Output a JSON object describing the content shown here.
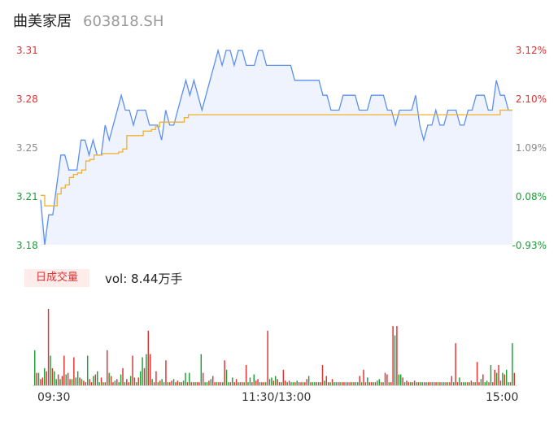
{
  "header": {
    "name": "曲美家居",
    "code": "603818.SH"
  },
  "price_axis": {
    "left_ticks": [
      {
        "label": "3.31",
        "color": "red"
      },
      {
        "label": "3.28",
        "color": "red"
      },
      {
        "label": "3.25",
        "color": "gray"
      },
      {
        "label": "3.21",
        "color": "green"
      },
      {
        "label": "3.18",
        "color": "green"
      }
    ],
    "right_ticks": [
      {
        "label": "3.12%",
        "color": "red"
      },
      {
        "label": "2.10%",
        "color": "red"
      },
      {
        "label": "1.09%",
        "color": "gray"
      },
      {
        "label": "0.08%",
        "color": "green"
      },
      {
        "label": "-0.93%",
        "color": "green"
      }
    ]
  },
  "volume": {
    "tag": "日成交量",
    "text": "vol: 8.44万手"
  },
  "time_axis": {
    "start": "09:30",
    "mid": "11:30/13:00",
    "end": "15:00"
  },
  "colors": {
    "price_line": "#5b8ff0",
    "avg_line": "#f0b030",
    "fill": "#eef3fd",
    "up": "#e03030",
    "down": "#1aa035"
  },
  "chart_data": [
    {
      "type": "line",
      "title": "",
      "ylim": [
        3.18,
        3.31
      ],
      "series": [
        {
          "values": [
            3.21,
            3.18,
            3.2,
            3.2,
            3.22,
            3.24,
            3.24,
            3.23,
            3.23,
            3.23,
            3.25,
            3.25,
            3.24,
            3.25,
            3.24,
            3.24,
            3.26,
            3.25,
            3.26,
            3.27,
            3.28,
            3.27,
            3.27,
            3.26,
            3.27,
            3.27,
            3.27,
            3.26,
            3.26,
            3.26,
            3.25,
            3.27,
            3.26,
            3.26,
            3.27,
            3.28,
            3.29,
            3.28,
            3.29,
            3.28,
            3.27,
            3.28,
            3.29,
            3.3,
            3.31,
            3.3,
            3.31,
            3.31,
            3.3,
            3.31,
            3.31,
            3.3,
            3.3,
            3.3,
            3.31,
            3.31,
            3.3,
            3.3,
            3.3,
            3.3,
            3.3,
            3.3,
            3.3,
            3.29,
            3.29,
            3.29,
            3.29,
            3.29,
            3.29,
            3.29,
            3.28,
            3.28,
            3.27,
            3.27,
            3.27,
            3.28,
            3.28,
            3.28,
            3.28,
            3.27,
            3.27,
            3.27,
            3.28,
            3.28,
            3.28,
            3.28,
            3.27,
            3.27,
            3.26,
            3.27,
            3.27,
            3.27,
            3.27,
            3.28,
            3.26,
            3.25,
            3.26,
            3.26,
            3.27,
            3.26,
            3.26,
            3.27,
            3.27,
            3.27,
            3.26,
            3.26,
            3.27,
            3.27,
            3.28,
            3.28,
            3.28,
            3.27,
            3.27,
            3.29,
            3.28,
            3.28,
            3.27,
            3.27
          ]
        },
        {
          "values": [
            3.213,
            3.206,
            3.206,
            3.206,
            3.214,
            3.218,
            3.22,
            3.225,
            3.227,
            3.228,
            3.23,
            3.236,
            3.237,
            3.24,
            3.24,
            3.241,
            3.241,
            3.241,
            3.241,
            3.242,
            3.244,
            3.253,
            3.253,
            3.253,
            3.253,
            3.256,
            3.256,
            3.257,
            3.259,
            3.262,
            3.262,
            3.262,
            3.262,
            3.262,
            3.262,
            3.265,
            3.267,
            3.267,
            3.267,
            3.267,
            3.267,
            3.267,
            3.267,
            3.267,
            3.267,
            3.267,
            3.267,
            3.267,
            3.267,
            3.267,
            3.267,
            3.267,
            3.267,
            3.267,
            3.267,
            3.267,
            3.267,
            3.267,
            3.267,
            3.267,
            3.267,
            3.267,
            3.267,
            3.267,
            3.267,
            3.267,
            3.267,
            3.267,
            3.267,
            3.267,
            3.267,
            3.267,
            3.267,
            3.267,
            3.267,
            3.267,
            3.267,
            3.267,
            3.267,
            3.267,
            3.267,
            3.267,
            3.267,
            3.267,
            3.267,
            3.267,
            3.267,
            3.267,
            3.267,
            3.267,
            3.267,
            3.267,
            3.267,
            3.267,
            3.267,
            3.267,
            3.267,
            3.267,
            3.267,
            3.267,
            3.267,
            3.267,
            3.267,
            3.267,
            3.267,
            3.267,
            3.267,
            3.267,
            3.267,
            3.267,
            3.267,
            3.267,
            3.27,
            3.27,
            3.27,
            3.27
          ]
        }
      ]
    },
    {
      "type": "bar",
      "title": "",
      "ylim": [
        0,
        100
      ],
      "values": [
        45,
        16,
        16,
        8,
        10,
        22,
        18,
        98,
        38,
        22,
        18,
        8,
        14,
        8,
        12,
        38,
        14,
        16,
        8,
        8,
        36,
        10,
        18,
        10,
        8,
        6,
        4,
        38,
        8,
        4,
        12,
        14,
        18,
        4,
        10,
        4,
        4,
        45,
        16,
        12,
        4,
        6,
        8,
        4,
        14,
        22,
        4,
        8,
        4,
        12,
        38,
        10,
        4,
        10,
        18,
        36,
        22,
        40,
        70,
        40,
        8,
        4,
        18,
        4,
        6,
        8,
        4,
        32,
        4,
        4,
        6,
        8,
        4,
        6,
        4,
        4,
        6,
        16,
        4,
        16,
        4,
        4,
        4,
        4,
        4,
        40,
        16,
        4,
        4,
        6,
        8,
        12,
        4,
        4,
        4,
        4,
        4,
        32,
        20,
        4,
        4,
        10,
        4,
        8,
        4,
        4,
        4,
        4,
        26,
        4,
        10,
        4,
        14,
        6,
        8,
        4,
        4,
        4,
        4,
        70,
        8,
        10,
        6,
        12,
        8,
        4,
        4,
        20,
        6,
        4,
        6,
        4,
        4,
        4,
        6,
        4,
        4,
        4,
        4,
        8,
        12,
        4,
        4,
        4,
        4,
        4,
        4,
        26,
        6,
        12,
        4,
        4,
        8,
        4,
        4,
        4,
        4,
        4,
        4,
        4,
        4,
        4,
        4,
        4,
        4,
        4,
        12,
        4,
        20,
        4,
        10,
        4,
        4,
        4,
        4,
        6,
        8,
        4,
        4,
        16,
        14,
        4,
        4,
        76,
        64,
        76,
        14,
        14,
        10,
        4,
        6,
        4,
        4,
        4,
        6,
        4,
        4,
        4,
        4,
        4,
        4,
        4,
        4,
        4,
        4,
        4,
        4,
        4,
        4,
        4,
        4,
        4,
        4,
        12,
        4,
        54,
        4,
        10,
        4,
        4,
        4,
        4,
        4,
        6,
        4,
        4,
        30,
        4,
        8,
        14,
        4,
        6,
        4,
        26,
        4,
        20,
        16,
        26,
        6,
        16,
        14,
        20,
        4,
        4,
        54,
        16
      ]
    }
  ]
}
